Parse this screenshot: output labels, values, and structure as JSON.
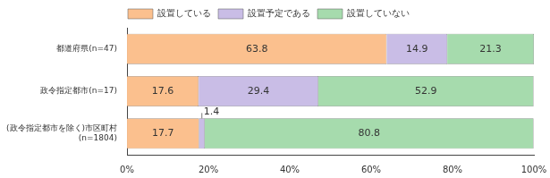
{
  "chart_data": {
    "type": "bar",
    "orientation": "horizontal",
    "stacked": true,
    "data_labels": true,
    "grid": false,
    "legend": "top",
    "categories": [
      "都道府県(n=47)",
      "政令指定都市(n=17)",
      "(政令指定都市を除く)市区町村(n=1804)"
    ],
    "series": [
      {
        "name": "設置している",
        "color": "#fbc08e",
        "values": [
          63.8,
          17.6,
          17.7
        ]
      },
      {
        "name": "設置予定である",
        "color": "#c9bde6",
        "values": [
          14.9,
          29.4,
          1.4
        ]
      },
      {
        "name": "設置していない",
        "color": "#a6dbad",
        "values": [
          21.3,
          52.9,
          80.8
        ]
      }
    ],
    "xlim": [
      0,
      100
    ],
    "xticks": [
      {
        "value": 0,
        "label": "0%"
      },
      {
        "value": 20,
        "label": "20%"
      },
      {
        "value": 40,
        "label": "40%"
      },
      {
        "value": 60,
        "label": "60%"
      },
      {
        "value": 80,
        "label": "80%"
      },
      {
        "value": 100,
        "label": "100%"
      }
    ]
  }
}
